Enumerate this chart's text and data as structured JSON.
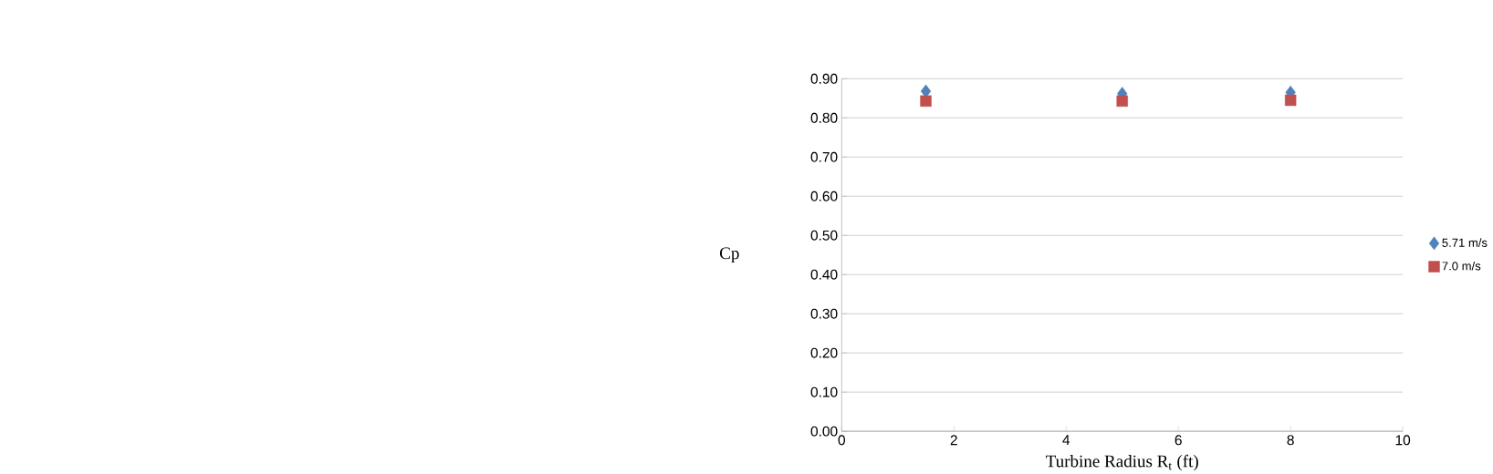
{
  "chart_data": {
    "type": "scatter",
    "xlabel": "Turbine Radius R$_{t}$ (ft)",
    "ylabel": "Cp",
    "x": [
      1.5,
      5,
      8
    ],
    "series": [
      {
        "name": "5.71 m/s",
        "color": "#4f81bd",
        "marker": "diamond",
        "values": [
          0.868,
          0.862,
          0.865
        ]
      },
      {
        "name": "7.0 m/s",
        "color": "#c0504d",
        "marker": "square",
        "values": [
          0.843,
          0.843,
          0.845
        ]
      }
    ],
    "xlim": [
      0,
      10
    ],
    "xticks": [
      0,
      2,
      4,
      6,
      8,
      10
    ],
    "ylim": [
      0,
      0.9
    ],
    "yticks": [
      {
        "value": 0,
        "label": "0.00"
      },
      {
        "value": 0.1,
        "label": "0.10"
      },
      {
        "value": 0.2,
        "label": "0.20"
      },
      {
        "value": 0.3,
        "label": "0.30"
      },
      {
        "value": 0.4,
        "label": "0.40"
      },
      {
        "value": 0.5,
        "label": "0.50"
      },
      {
        "value": 0.6,
        "label": "0.60"
      },
      {
        "value": 0.7,
        "label": "0.70"
      },
      {
        "value": 0.8,
        "label": "0.80"
      },
      {
        "value": 0.9,
        "label": "0.90"
      }
    ],
    "grid": "y",
    "legend": "right"
  }
}
